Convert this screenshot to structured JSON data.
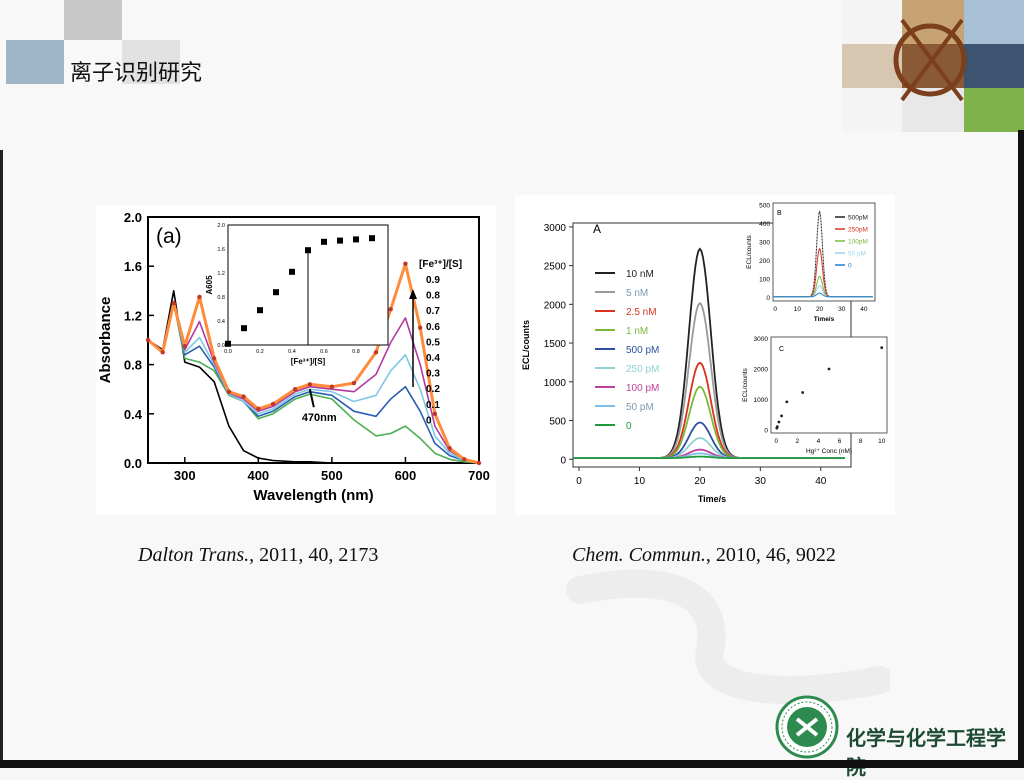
{
  "slide": {
    "title": "离子识别研究",
    "org_name": "化学与化学工程学院"
  },
  "captions": [
    {
      "journal": "Dalton Trans.",
      "rest": ", 2011, 40, 2173"
    },
    {
      "journal": "Chem. Commun.",
      "rest": ", 2010, 46, 9022"
    }
  ],
  "colors": {
    "logo_green": "#2e8b4f",
    "curve_orange": "#ff8c3a",
    "deco_gray": "#c8c8c8",
    "deco_blue": "#9fb6c8"
  },
  "chart_data": [
    {
      "type": "line",
      "panel_label": "(a)",
      "xlabel": "Wavelength (nm)",
      "ylabel": "Absorbance",
      "xlim": [
        250,
        700
      ],
      "ylim": [
        0,
        2.0
      ],
      "xticks": [
        300,
        400,
        500,
        600,
        700
      ],
      "yticks": [
        0.0,
        0.4,
        0.8,
        1.2,
        1.6,
        2.0
      ],
      "annotation": "470nm",
      "legend_title": "[Fe³⁺]/[S]",
      "legend_values": [
        "0.9",
        "0.8",
        "0.7",
        "0.6",
        "0.5",
        "0.4",
        "0.3",
        "0.2",
        "0.1",
        "0"
      ],
      "series": [
        {
          "name": "0",
          "color": "#000000",
          "x": [
            250,
            270,
            285,
            300,
            320,
            340,
            360,
            380,
            400,
            420,
            450,
            470,
            500,
            530,
            560,
            580,
            600,
            620,
            640,
            660,
            680,
            700
          ],
          "y": [
            1.0,
            0.92,
            1.4,
            0.82,
            0.78,
            0.66,
            0.3,
            0.1,
            0.04,
            0.02,
            0.01,
            0.01,
            0.0,
            0.0,
            0.0,
            0.0,
            0.0,
            0.0,
            0.0,
            0.0,
            0.0,
            0.0
          ]
        },
        {
          "name": "0.3",
          "color": "#4caf50",
          "x": [
            250,
            270,
            285,
            300,
            320,
            340,
            360,
            380,
            400,
            420,
            450,
            470,
            500,
            530,
            560,
            580,
            600,
            620,
            640,
            660,
            680,
            700
          ],
          "y": [
            1.0,
            0.9,
            1.3,
            0.85,
            0.82,
            0.75,
            0.55,
            0.5,
            0.36,
            0.4,
            0.52,
            0.56,
            0.52,
            0.35,
            0.22,
            0.24,
            0.3,
            0.2,
            0.08,
            0.03,
            0.01,
            0.0
          ]
        },
        {
          "name": "0.5",
          "color": "#2b5fb3",
          "x": [
            250,
            270,
            285,
            300,
            320,
            340,
            360,
            380,
            400,
            420,
            450,
            470,
            500,
            530,
            560,
            580,
            600,
            620,
            640,
            660,
            680,
            700
          ],
          "y": [
            1.0,
            0.9,
            1.3,
            0.88,
            0.95,
            0.78,
            0.56,
            0.5,
            0.38,
            0.42,
            0.54,
            0.58,
            0.55,
            0.42,
            0.38,
            0.52,
            0.62,
            0.42,
            0.16,
            0.06,
            0.02,
            0.0
          ]
        },
        {
          "name": "0.6",
          "color": "#7ec8e3",
          "x": [
            250,
            270,
            285,
            300,
            320,
            340,
            360,
            380,
            400,
            420,
            450,
            470,
            500,
            530,
            560,
            580,
            600,
            620,
            640,
            660,
            680,
            700
          ],
          "y": [
            1.0,
            0.9,
            1.3,
            0.9,
            1.02,
            0.8,
            0.56,
            0.5,
            0.4,
            0.44,
            0.56,
            0.6,
            0.58,
            0.5,
            0.55,
            0.75,
            0.88,
            0.6,
            0.22,
            0.08,
            0.02,
            0.0
          ]
        },
        {
          "name": "0.7",
          "color": "#b03aa0",
          "x": [
            250,
            270,
            285,
            300,
            320,
            340,
            360,
            380,
            400,
            420,
            450,
            470,
            500,
            530,
            560,
            580,
            600,
            620,
            640,
            660,
            680,
            700
          ],
          "y": [
            1.0,
            0.9,
            1.3,
            0.92,
            1.15,
            0.82,
            0.57,
            0.52,
            0.42,
            0.46,
            0.58,
            0.62,
            0.6,
            0.58,
            0.72,
            0.98,
            1.18,
            0.8,
            0.3,
            0.1,
            0.03,
            0.0
          ]
        },
        {
          "name": "0.9",
          "color": "#ff8c3a",
          "x": [
            250,
            270,
            285,
            300,
            320,
            340,
            360,
            380,
            400,
            420,
            450,
            470,
            500,
            530,
            560,
            580,
            600,
            620,
            640,
            660,
            680,
            700
          ],
          "y": [
            1.0,
            0.9,
            1.3,
            0.95,
            1.35,
            0.85,
            0.58,
            0.54,
            0.44,
            0.48,
            0.6,
            0.64,
            0.62,
            0.65,
            0.9,
            1.25,
            1.62,
            1.1,
            0.4,
            0.12,
            0.03,
            0.0
          ]
        }
      ],
      "inset": {
        "xlabel": "[Fe³⁺]/[S]",
        "ylabel": "A605",
        "xlim": [
          0,
          1.0
        ],
        "ylim": [
          0,
          2.0
        ],
        "xticks": [
          "0.0",
          "0.2",
          "0.4",
          "0.6",
          "0.8"
        ],
        "yticks": [
          "0.0",
          "0.4",
          "0.8",
          "1.2",
          "1.6",
          "2.0"
        ],
        "x": [
          0.0,
          0.1,
          0.2,
          0.3,
          0.4,
          0.5,
          0.6,
          0.7,
          0.8,
          0.9
        ],
        "y": [
          0.02,
          0.28,
          0.58,
          0.88,
          1.22,
          1.58,
          1.72,
          1.74,
          1.76,
          1.78
        ]
      }
    },
    {
      "type": "line",
      "panel_label": "A",
      "xlabel": "Time/s",
      "ylabel": "ECL/counts",
      "xlim": [
        -1,
        45
      ],
      "ylim": [
        -100,
        3050
      ],
      "xticks": [
        0,
        10,
        20,
        30,
        40
      ],
      "yticks": [
        0,
        500,
        1000,
        1500,
        2000,
        2500,
        3000
      ],
      "legend": [
        {
          "label": "10 nM",
          "color": "#222222",
          "peak": 2700
        },
        {
          "label": "5 nM",
          "color": "#9a9a9a",
          "peak": 2000
        },
        {
          "label": "2.5 nM",
          "color": "#d8321e",
          "peak": 1230
        },
        {
          "label": "1 nM",
          "color": "#7bb83a",
          "peak": 920
        },
        {
          "label": "500 pM",
          "color": "#2e4fa0",
          "peak": 460
        },
        {
          "label": "250 pM",
          "color": "#8fd0d0",
          "peak": 260
        },
        {
          "label": "100 pM",
          "color": "#c2409a",
          "peak": 110
        },
        {
          "label": "50 pM",
          "color": "#7cc0e8",
          "peak": 60
        },
        {
          "label": "0",
          "color": "#1e9a3c",
          "peak": 20
        }
      ],
      "inset_b": {
        "panel_label": "B",
        "xlabel": "Time/s",
        "ylabel": "ECL/counts",
        "xlim": [
          -1,
          45
        ],
        "ylim": [
          -20,
          510
        ],
        "xticks": [
          0,
          10,
          20,
          30,
          40
        ],
        "yticks": [
          0,
          100,
          200,
          300,
          400,
          500
        ],
        "legend": [
          {
            "label": "500pM",
            "color": "#222222",
            "peak": 460
          },
          {
            "label": "250pM",
            "color": "#d8321e",
            "peak": 260
          },
          {
            "label": "100pM",
            "color": "#7bb83a",
            "peak": 110
          },
          {
            "label": "50 pM",
            "color": "#9ed0ee",
            "peak": 60
          },
          {
            "label": "0",
            "color": "#1e7fd0",
            "peak": 20
          }
        ]
      },
      "inset_c": {
        "panel_label": "C",
        "xlabel": "Hg²⁺ Conc (nM)",
        "ylabel": "ECL/counts",
        "xlim": [
          -0.5,
          10.5
        ],
        "ylim": [
          -100,
          3050
        ],
        "xticks": [
          0,
          2,
          4,
          6,
          8,
          10
        ],
        "yticks": [
          0,
          1000,
          2000,
          3000
        ],
        "x": [
          0.05,
          0.1,
          0.25,
          0.5,
          1,
          2.5,
          5,
          10
        ],
        "y": [
          60,
          110,
          260,
          460,
          920,
          1230,
          2000,
          2700
        ]
      }
    }
  ]
}
